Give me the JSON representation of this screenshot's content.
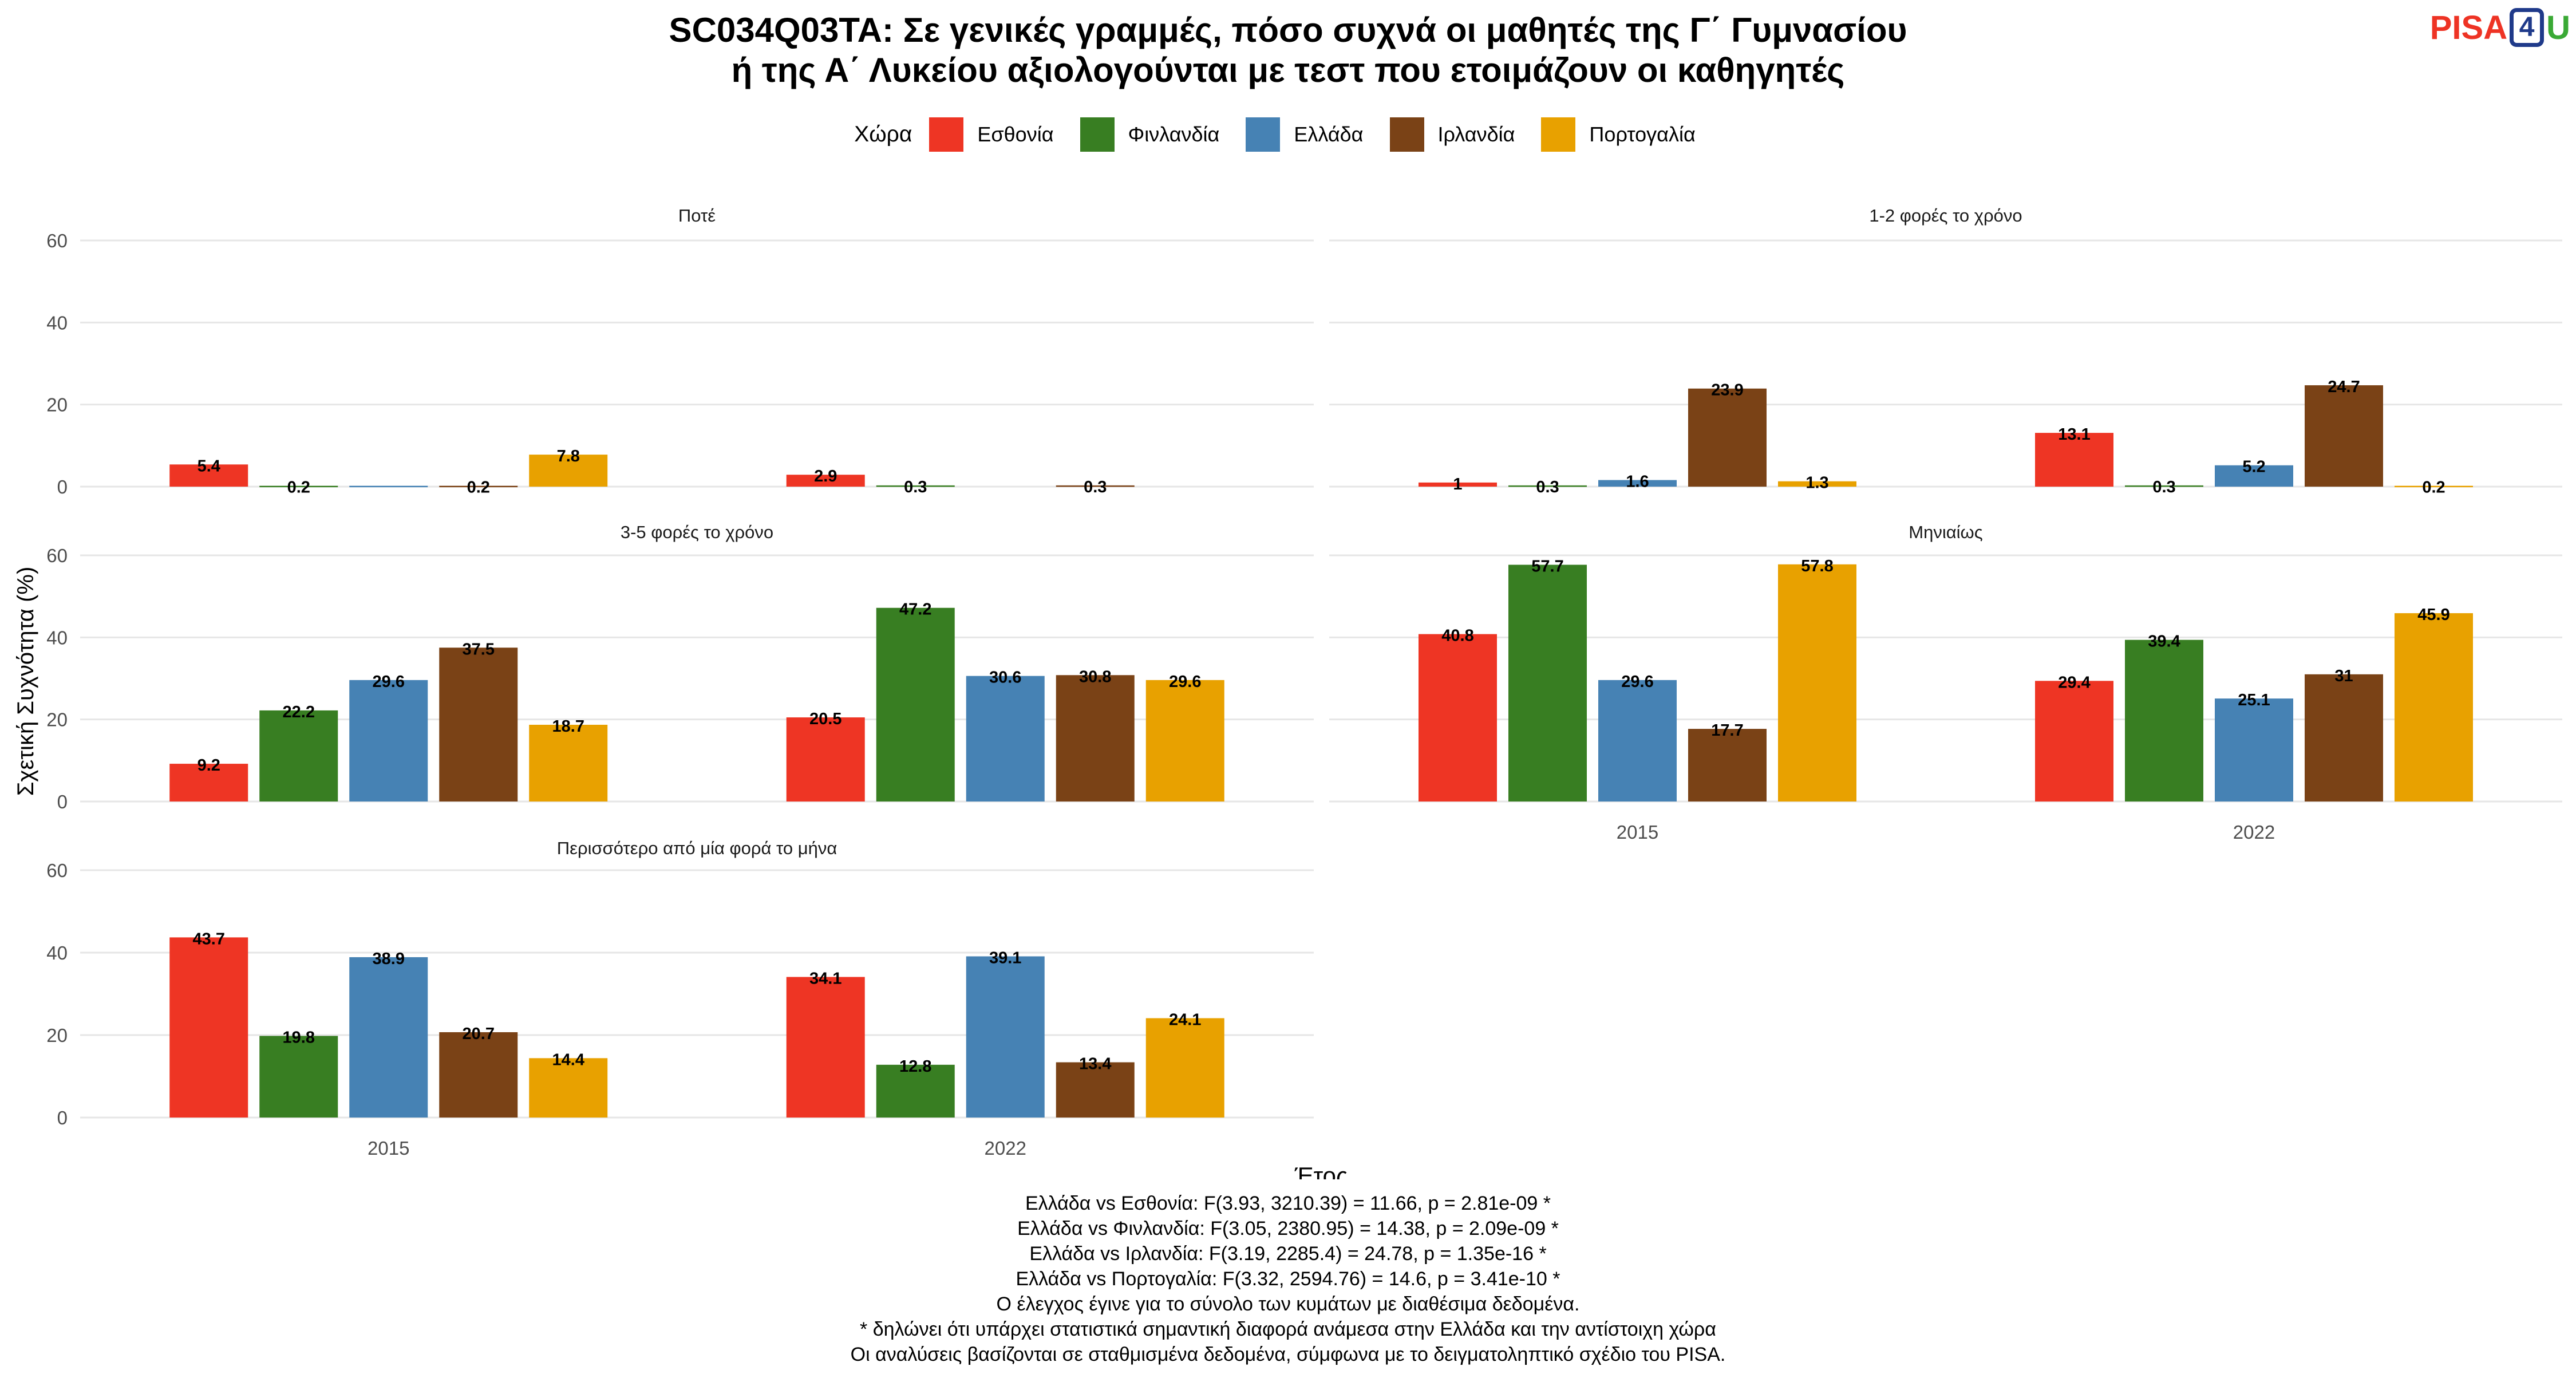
{
  "title_lines": [
    "SC034Q03TA: Σε γενικές γραμμές, πόσο συχνά οι μαθητές της Γ΄ Γυμνασίου",
    "ή της Α΄ Λυκείου αξιολογούνται με τεστ που ετοιμάζουν οι καθηγητές"
  ],
  "logo": {
    "part1": "PISA",
    "part2": "4",
    "part3": "U"
  },
  "legend": {
    "title": "Χώρα"
  },
  "chart_data": {
    "type": "bar",
    "xlabel": "Έτος",
    "ylabel": "Σχετική Συχνότητα (%)",
    "ylim": [
      0,
      60
    ],
    "yticks": [
      0,
      20,
      40,
      60
    ],
    "years": [
      "2015",
      "2022"
    ],
    "countries": [
      {
        "name": "Εσθονία",
        "color": "#EE3524"
      },
      {
        "name": "Φινλανδία",
        "color": "#387E22"
      },
      {
        "name": "Ελλάδα",
        "color": "#4682B4"
      },
      {
        "name": "Ιρλανδία",
        "color": "#7A4216"
      },
      {
        "name": "Πορτογαλία",
        "color": "#E8A100"
      }
    ],
    "panels": [
      {
        "title": "Ποτέ",
        "values": {
          "2015": [
            5.4,
            0.2,
            0.2,
            0.2,
            7.8
          ],
          "2022": [
            2.9,
            0.3,
            null,
            0.3,
            null
          ]
        },
        "labels": {
          "2015": [
            "5.4",
            "0.2",
            "",
            "0.2",
            "7.8"
          ],
          "2022": [
            "2.9",
            "0.3",
            "",
            "0.3",
            ""
          ]
        }
      },
      {
        "title": "1-2 φορές το χρόνο",
        "values": {
          "2015": [
            1,
            0.3,
            1.6,
            23.9,
            1.3
          ],
          "2022": [
            13.1,
            0.3,
            5.2,
            24.7,
            0.2
          ]
        },
        "labels": {
          "2015": [
            "1",
            "0.3",
            "1.6",
            "23.9",
            "1.3"
          ],
          "2022": [
            "13.1",
            "0.3",
            "5.2",
            "24.7",
            "0.2"
          ]
        }
      },
      {
        "title": "3-5 φορές το χρόνο",
        "values": {
          "2015": [
            9.2,
            22.2,
            29.6,
            37.5,
            18.7
          ],
          "2022": [
            20.5,
            47.2,
            30.6,
            30.8,
            29.6
          ]
        },
        "labels": {
          "2015": [
            "9.2",
            "22.2",
            "29.6",
            "37.5",
            "18.7"
          ],
          "2022": [
            "20.5",
            "47.2",
            "30.6",
            "30.8",
            "29.6"
          ]
        }
      },
      {
        "title": "Μηνιαίως",
        "values": {
          "2015": [
            40.8,
            57.7,
            29.6,
            17.7,
            57.8
          ],
          "2022": [
            29.4,
            39.4,
            25.1,
            31,
            45.9
          ]
        },
        "labels": {
          "2015": [
            "40.8",
            "57.7",
            "29.6",
            "17.7",
            "57.8"
          ],
          "2022": [
            "29.4",
            "39.4",
            "25.1",
            "31",
            "45.9"
          ]
        }
      },
      {
        "title": "Περισσότερο από μία φορά το μήνα",
        "values": {
          "2015": [
            43.7,
            19.8,
            38.9,
            20.7,
            14.4
          ],
          "2022": [
            34.1,
            12.8,
            39.1,
            13.4,
            24.1
          ]
        },
        "labels": {
          "2015": [
            "43.7",
            "19.8",
            "38.9",
            "20.7",
            "14.4"
          ],
          "2022": [
            "34.1",
            "12.8",
            "39.1",
            "13.4",
            "24.1"
          ]
        }
      }
    ]
  },
  "footer_lines": [
    "Ελλάδα vs Εσθονία: F(3.93, 3210.39) = 11.66, p = 2.81e-09 *",
    "Ελλάδα vs Φινλανδία: F(3.05, 2380.95) = 14.38, p = 2.09e-09 *",
    "Ελλάδα vs Ιρλανδία: F(3.19, 2285.4) = 24.78, p = 1.35e-16 *",
    "Ελλάδα vs Πορτογαλία: F(3.32, 2594.76) = 14.6, p = 3.41e-10 *",
    "Ο έλεγχος έγινε για το σύνολο των κυμάτων με διαθέσιμα δεδομένα.",
    "* δηλώνει ότι υπάρχει στατιστικά σημαντική διαφορά ανάμεσα στην Ελλάδα και την αντίστοιχη χώρα",
    "Οι αναλύσεις βασίζονται σε σταθμισμένα δεδομένα, σύμφωνα με το δειγματοληπτικό σχέδιο του PISA."
  ]
}
